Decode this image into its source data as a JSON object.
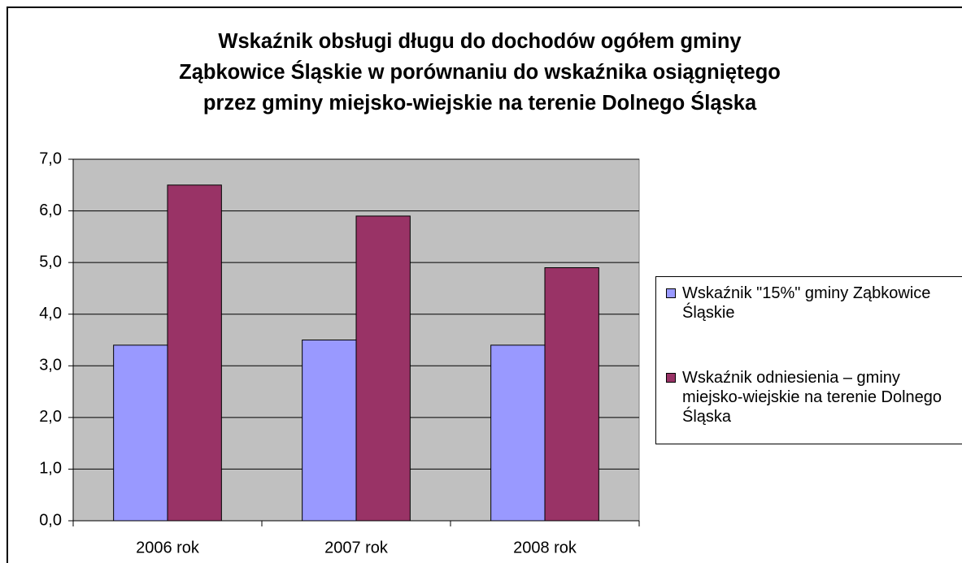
{
  "chart_data": {
    "type": "bar",
    "title": "Wskaźnik obsługi długu do dochodów ogółem gminy\nZąbkowice Śląskie w porównaniu do wskaźnika osiągniętego\nprzez gminy miejsko-wiejskie na terenie Dolnego Śląska",
    "categories": [
      "2006 rok",
      "2007 rok",
      "2008 rok"
    ],
    "series": [
      {
        "name": "Wskaźnik \"15%\" gminy Ząbkowice Śląskie",
        "color": "#9999ff",
        "values": [
          3.4,
          3.5,
          3.4
        ]
      },
      {
        "name": "Wskaźnik odniesienia – gminy miejsko-wiejskie na terenie Dolnego Śląska",
        "color": "#993366",
        "values": [
          6.5,
          5.9,
          4.9
        ]
      }
    ],
    "ylim": [
      0,
      7
    ],
    "yticks": [
      {
        "value": 0,
        "label": "0,0"
      },
      {
        "value": 1,
        "label": "1,0"
      },
      {
        "value": 2,
        "label": "2,0"
      },
      {
        "value": 3,
        "label": "3,0"
      },
      {
        "value": 4,
        "label": "4,0"
      },
      {
        "value": 5,
        "label": "5,0"
      },
      {
        "value": 6,
        "label": "6,0"
      },
      {
        "value": 7,
        "label": "7,0"
      }
    ],
    "plot_background": "#c0c0c0",
    "legend": "right"
  }
}
